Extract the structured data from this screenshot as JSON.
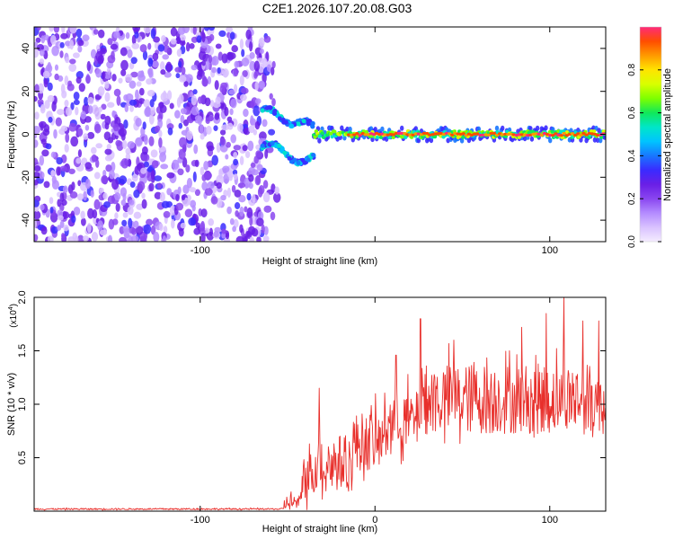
{
  "figure": {
    "title": "C2E1.2026.107.20.08.G03"
  },
  "colors": {
    "snr_line": "#e8302c",
    "background": "#ffffff",
    "axes": "#000000"
  },
  "chart_data": [
    {
      "type": "heatmap",
      "title": "C2E1.2026.107.20.08.G03",
      "xlabel": "Height of straight line (km)",
      "ylabel": "Frequency (Hz)",
      "xlim": [
        -195,
        132
      ],
      "ylim": [
        -50,
        50
      ],
      "x_ticks": [
        -100,
        0,
        100
      ],
      "x_tick_labels": [
        "-100",
        "",
        "100"
      ],
      "y_ticks": [
        -40,
        -20,
        0,
        20,
        40
      ],
      "y_tick_labels": [
        "-40",
        "-20",
        "0",
        "20",
        "40"
      ],
      "description_of_regions": {
        "noise_region_x": [
          -195,
          -62
        ],
        "diverging_branches_x": [
          -65,
          -35
        ],
        "carrier_line_x": [
          -35,
          132
        ],
        "carrier_frequency": 0
      },
      "colorbar": {
        "label": "Normalized spectral amplitude",
        "range": [
          0.0,
          1.0
        ],
        "ticks": [
          0.0,
          0.2,
          0.4,
          0.6,
          0.8
        ],
        "tick_labels": [
          "0.0",
          "0.2",
          "0.4",
          "0.6",
          "0.8"
        ],
        "colormap": [
          "#f4ecff",
          "#d9c2ff",
          "#b48cff",
          "#8a46f0",
          "#6a1fe6",
          "#3a2bff",
          "#1877ff",
          "#00c4ff",
          "#00e6c8",
          "#10e85a",
          "#7dff00",
          "#d8ff00",
          "#ffe400",
          "#ff9a00",
          "#ff4d00",
          "#ff2a7a"
        ]
      }
    },
    {
      "type": "line",
      "title": "",
      "xlabel": "Height of straight line (km)",
      "ylabel": "SNR (10 * v/v)",
      "y_multiplier_label": "(x10",
      "y_multiplier_exponent": "4",
      "y_multiplier_close": ")",
      "xlim": [
        -195,
        132
      ],
      "ylim": [
        0,
        2.0
      ],
      "x_ticks": [
        -100,
        0,
        100
      ],
      "x_tick_labels": [
        "-100",
        "0",
        "100"
      ],
      "y_ticks": [
        0.5,
        1.0,
        1.5,
        2.0
      ],
      "y_tick_labels": [
        "0.5",
        "1.0",
        "1.5",
        "2.0"
      ],
      "series": [
        {
          "name": "SNR",
          "segments": [
            {
              "x_range": [
                -195,
                -52
              ],
              "mean": 0.02,
              "amplitude": 0.012
            },
            {
              "x_range": [
                -52,
                -42
              ],
              "mean": 0.08,
              "amplitude": 0.12
            },
            {
              "x_range": [
                -42,
                -35
              ],
              "mean": 0.35,
              "amplitude": 0.35
            },
            {
              "x_range": [
                -35,
                -13
              ],
              "mean": 0.45,
              "amplitude": 0.45
            },
            {
              "x_range": [
                -13,
                5
              ],
              "mean": 0.65,
              "amplitude": 0.45
            },
            {
              "x_range": [
                5,
                25
              ],
              "mean": 0.85,
              "amplitude": 0.45
            },
            {
              "x_range": [
                25,
                132
              ],
              "mean": 1.05,
              "amplitude": 0.55
            }
          ],
          "peaks": [
            {
              "x": -32,
              "y": 1.15
            },
            {
              "x": 12,
              "y": 1.46
            },
            {
              "x": 26,
              "y": 1.8
            },
            {
              "x": 45,
              "y": 1.6
            },
            {
              "x": 84,
              "y": 1.72
            },
            {
              "x": 98,
              "y": 1.85
            },
            {
              "x": 108,
              "y": 2.0
            },
            {
              "x": 119,
              "y": 1.78
            },
            {
              "x": 128,
              "y": 1.78
            }
          ]
        }
      ]
    }
  ]
}
